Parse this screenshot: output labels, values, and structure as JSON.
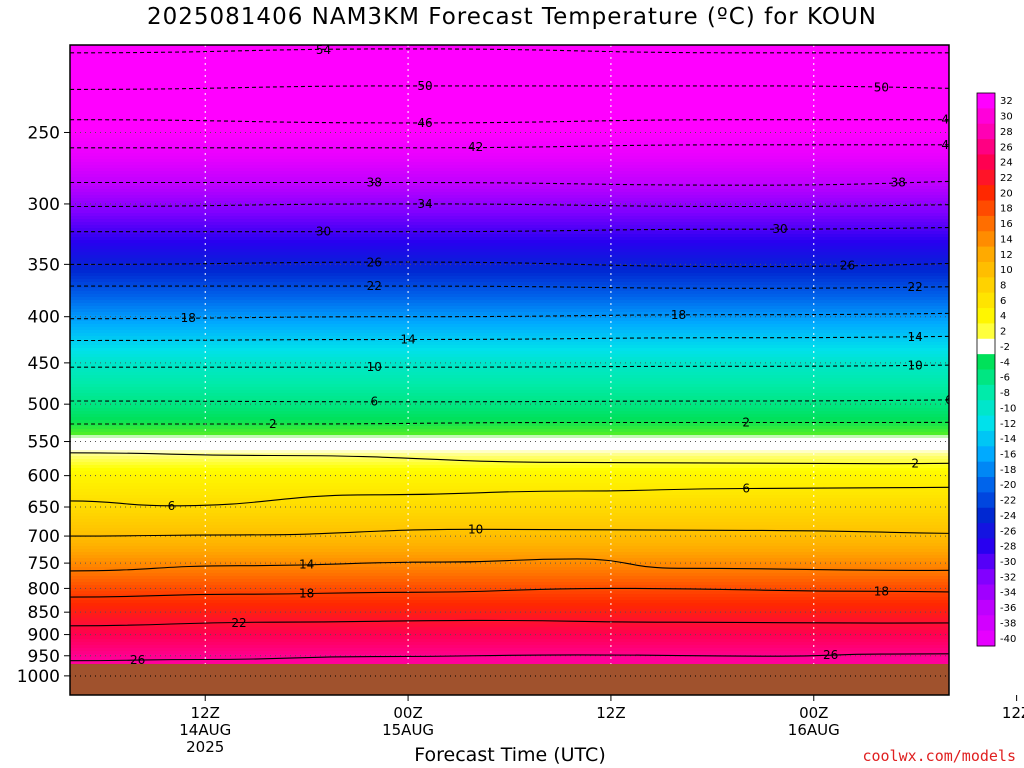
{
  "title": "2025081406 NAM3KM Forecast Temperature (ºC) for KOUN",
  "x_axis_title": "Forecast Time (UTC)",
  "credit": "coolwx.com/models",
  "chart_data": {
    "type": "heatmap",
    "title": "2025081406 NAM3KM Forecast Temperature (ºC) for KOUN",
    "xlabel": "Forecast Time (UTC)",
    "ylabel": "",
    "y_scale": "log",
    "y_inverted": true,
    "ylim": [
      1050,
      200
    ],
    "xlim": [
      "2025-08-14 06Z",
      "2025-08-16 06Z"
    ],
    "y_ticks": [
      250,
      300,
      350,
      400,
      450,
      500,
      550,
      600,
      650,
      700,
      750,
      800,
      850,
      900,
      950,
      1000
    ],
    "x_ticks": [
      {
        "time": "2025-08-14 12Z",
        "lines": [
          "12Z",
          "14AUG",
          "2025"
        ]
      },
      {
        "time": "2025-08-15 00Z",
        "lines": [
          "00Z",
          "15AUG"
        ]
      },
      {
        "time": "2025-08-15 12Z",
        "lines": [
          "12Z"
        ]
      },
      {
        "time": "2025-08-16 00Z",
        "lines": [
          "00Z",
          "16AUG"
        ]
      },
      {
        "time": "2025-08-16 12Z",
        "lines": [
          "12Z"
        ]
      }
    ],
    "grid": true,
    "ground_color": "#a0522d",
    "colorbar_levels": [
      32,
      30,
      28,
      26,
      24,
      22,
      20,
      18,
      16,
      14,
      12,
      10,
      8,
      6,
      4,
      2,
      -2,
      -4,
      -6,
      -8,
      -10,
      -12,
      -14,
      -16,
      -18,
      -20,
      -22,
      -24,
      -26,
      -28,
      -30,
      -32,
      -34,
      -36,
      -38,
      -40
    ],
    "temperature_profile": [
      {
        "pressure": 960,
        "temp": 27
      },
      {
        "pressure": 900,
        "temp": 24
      },
      {
        "pressure": 850,
        "temp": 21
      },
      {
        "pressure": 800,
        "temp": 18
      },
      {
        "pressure": 750,
        "temp": 14
      },
      {
        "pressure": 700,
        "temp": 10
      },
      {
        "pressure": 650,
        "temp": 7
      },
      {
        "pressure": 600,
        "temp": 4
      },
      {
        "pressure": 570,
        "temp": 1
      },
      {
        "pressure": 550,
        "temp": -1
      },
      {
        "pressure": 500,
        "temp": -6
      },
      {
        "pressure": 450,
        "temp": -10
      },
      {
        "pressure": 400,
        "temp": -17
      },
      {
        "pressure": 350,
        "temp": -25
      },
      {
        "pressure": 300,
        "temp": -33
      },
      {
        "pressure": 250,
        "temp": -44
      },
      {
        "pressure": 200,
        "temp": -54
      }
    ],
    "contours": [
      {
        "value": 26,
        "label": "26",
        "style": "solid",
        "points": [
          [
            0,
            962
          ],
          [
            8,
            959
          ],
          [
            18,
            952
          ],
          [
            30,
            948
          ],
          [
            42,
            951
          ],
          [
            48,
            946
          ],
          [
            60,
            944
          ],
          [
            72,
            950
          ],
          [
            80,
            948
          ],
          [
            96,
            958
          ]
        ],
        "labels_at": [
          4,
          45
        ]
      },
      {
        "value": 22,
        "label": "22",
        "style": "solid",
        "points": [
          [
            0,
            880
          ],
          [
            12,
            872
          ],
          [
            24,
            868
          ],
          [
            36,
            872
          ],
          [
            48,
            874
          ],
          [
            60,
            873
          ],
          [
            72,
            876
          ],
          [
            84,
            872
          ],
          [
            96,
            880
          ]
        ],
        "labels_at": [
          10,
          76
        ]
      },
      {
        "value": 18,
        "label": "18",
        "style": "solid",
        "points": [
          [
            0,
            818
          ],
          [
            10,
            812
          ],
          [
            20,
            808
          ],
          [
            32,
            800
          ],
          [
            48,
            806
          ],
          [
            60,
            812
          ],
          [
            72,
            808
          ],
          [
            84,
            806
          ],
          [
            96,
            812
          ]
        ],
        "labels_at": [
          14,
          48,
          80
        ]
      },
      {
        "value": 14,
        "label": "14",
        "style": "solid",
        "points": [
          [
            0,
            765
          ],
          [
            10,
            755
          ],
          [
            22,
            748
          ],
          [
            30,
            742
          ],
          [
            36,
            760
          ],
          [
            50,
            764
          ],
          [
            62,
            760
          ],
          [
            72,
            758
          ],
          [
            84,
            752
          ],
          [
            96,
            750
          ]
        ],
        "labels_at": [
          14,
          54,
          79
        ]
      },
      {
        "value": 10,
        "label": "10",
        "style": "solid",
        "points": [
          [
            0,
            700
          ],
          [
            10,
            698
          ],
          [
            24,
            688
          ],
          [
            40,
            690
          ],
          [
            56,
            696
          ],
          [
            62,
            690
          ],
          [
            72,
            686
          ],
          [
            84,
            694
          ],
          [
            96,
            702
          ]
        ],
        "labels_at": [
          24,
          54,
          78
        ]
      },
      {
        "value": 6,
        "label": "6",
        "style": "solid",
        "points": [
          [
            0,
            640
          ],
          [
            6,
            648
          ],
          [
            18,
            630
          ],
          [
            30,
            624
          ],
          [
            40,
            620
          ],
          [
            60,
            617
          ],
          [
            72,
            612
          ],
          [
            84,
            620
          ],
          [
            90,
            646
          ],
          [
            96,
            635
          ]
        ],
        "labels_at": [
          6,
          40,
          70
        ]
      },
      {
        "value": 2,
        "label": "2",
        "style": "solid",
        "points": [
          [
            0,
            566
          ],
          [
            12,
            570
          ],
          [
            30,
            580
          ],
          [
            48,
            582
          ],
          [
            64,
            578
          ],
          [
            80,
            576
          ],
          [
            92,
            586
          ],
          [
            96,
            580
          ]
        ],
        "labels_at": [
          50,
          78
        ]
      },
      {
        "value": -2,
        "label": "2",
        "style": "dashed",
        "points": [
          [
            0,
            526
          ],
          [
            12,
            526
          ],
          [
            30,
            524
          ],
          [
            48,
            524
          ],
          [
            64,
            522
          ],
          [
            80,
            524
          ],
          [
            96,
            522
          ]
        ],
        "labels_at": [
          12,
          40,
          70
        ]
      },
      {
        "value": -6,
        "label": "6",
        "style": "dashed",
        "points": [
          [
            0,
            496
          ],
          [
            20,
            497
          ],
          [
            40,
            496
          ],
          [
            60,
            494
          ],
          [
            80,
            495
          ],
          [
            96,
            494
          ]
        ],
        "labels_at": [
          18,
          52,
          80
        ]
      },
      {
        "value": -10,
        "label": "10",
        "style": "dashed",
        "points": [
          [
            0,
            455
          ],
          [
            20,
            455
          ],
          [
            40,
            454
          ],
          [
            60,
            452
          ],
          [
            80,
            454
          ],
          [
            96,
            453
          ]
        ],
        "labels_at": [
          18,
          50,
          80
        ]
      },
      {
        "value": -14,
        "label": "14",
        "style": "dashed",
        "points": [
          [
            0,
            425
          ],
          [
            20,
            424
          ],
          [
            40,
            422
          ],
          [
            60,
            420
          ],
          [
            80,
            422
          ],
          [
            96,
            424
          ]
        ],
        "labels_at": [
          20,
          50,
          80
        ]
      },
      {
        "value": -18,
        "label": "18",
        "style": "dashed",
        "points": [
          [
            0,
            402
          ],
          [
            20,
            400
          ],
          [
            40,
            398
          ],
          [
            60,
            396
          ],
          [
            80,
            398
          ],
          [
            96,
            402
          ]
        ],
        "labels_at": [
          7,
          36,
          80
        ]
      },
      {
        "value": -22,
        "label": "22",
        "style": "dashed",
        "points": [
          [
            0,
            370
          ],
          [
            20,
            370
          ],
          [
            40,
            372
          ],
          [
            60,
            370
          ],
          [
            80,
            368
          ],
          [
            96,
            370
          ]
        ],
        "labels_at": [
          18,
          50,
          78
        ]
      },
      {
        "value": -26,
        "label": "26",
        "style": "dashed",
        "points": [
          [
            0,
            350
          ],
          [
            20,
            348
          ],
          [
            40,
            352
          ],
          [
            60,
            348
          ],
          [
            80,
            346
          ],
          [
            96,
            348
          ]
        ],
        "labels_at": [
          18,
          46,
          72
        ]
      },
      {
        "value": -30,
        "label": "30",
        "style": "dashed",
        "points": [
          [
            0,
            322
          ],
          [
            20,
            322
          ],
          [
            40,
            320
          ],
          [
            60,
            318
          ],
          [
            80,
            320
          ],
          [
            96,
            320
          ]
        ],
        "labels_at": [
          15,
          42,
          70
        ]
      },
      {
        "value": -34,
        "label": "34",
        "style": "dashed",
        "points": [
          [
            0,
            302
          ],
          [
            20,
            300
          ],
          [
            40,
            302
          ],
          [
            60,
            300
          ],
          [
            80,
            300
          ],
          [
            96,
            302
          ]
        ],
        "labels_at": [
          21,
          55,
          80
        ]
      },
      {
        "value": -38,
        "label": "38",
        "style": "dashed",
        "points": [
          [
            0,
            284
          ],
          [
            20,
            284
          ],
          [
            40,
            286
          ],
          [
            60,
            282
          ],
          [
            80,
            284
          ],
          [
            96,
            284
          ]
        ],
        "labels_at": [
          18,
          49,
          78
        ]
      },
      {
        "value": -42,
        "label": "42",
        "style": "dashed",
        "points": [
          [
            0,
            260
          ],
          [
            20,
            260
          ],
          [
            40,
            258
          ],
          [
            60,
            258
          ],
          [
            80,
            260
          ],
          [
            96,
            260
          ]
        ],
        "labels_at": [
          24,
          52,
          80
        ]
      },
      {
        "value": -46,
        "label": "46",
        "style": "dashed",
        "points": [
          [
            0,
            242
          ],
          [
            20,
            244
          ],
          [
            40,
            242
          ],
          [
            60,
            242
          ],
          [
            80,
            244
          ],
          [
            96,
            244
          ]
        ],
        "labels_at": [
          21,
          52,
          78
        ]
      },
      {
        "value": -50,
        "label": "50",
        "style": "dashed",
        "points": [
          [
            0,
            224
          ],
          [
            20,
            222
          ],
          [
            40,
            222
          ],
          [
            60,
            224
          ],
          [
            80,
            222
          ],
          [
            96,
            224
          ]
        ],
        "labels_at": [
          21,
          48,
          76
        ]
      },
      {
        "value": -54,
        "label": "54",
        "style": "dashed",
        "points": [
          [
            0,
            204
          ],
          [
            20,
            202
          ],
          [
            40,
            204
          ],
          [
            60,
            204
          ],
          [
            80,
            204
          ],
          [
            96,
            205
          ]
        ],
        "labels_at": [
          15
        ]
      }
    ]
  }
}
